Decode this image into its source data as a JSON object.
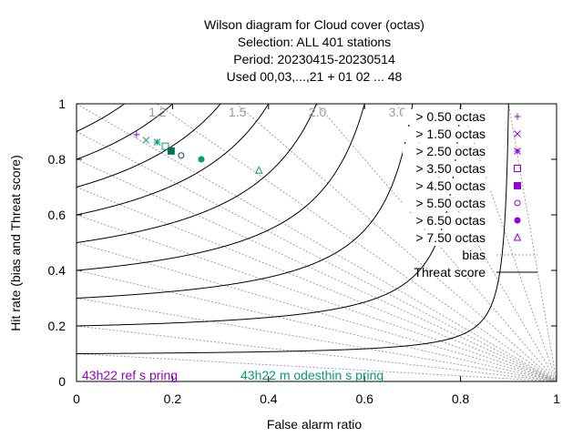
{
  "chart_data": {
    "type": "scatter",
    "title_lines": [
      "Wilson diagram  for Cloud cover (octas)",
      "Selection: ALL     401 stations",
      "Period: 20230415-20230514",
      "Used  00,03,...,21  + 01 02 ... 48"
    ],
    "xlabel": "False alarm ratio",
    "ylabel": "Hit rate (bias and Threat score)",
    "xlim": [
      0,
      1
    ],
    "ylim": [
      0,
      1
    ],
    "xticks": [
      "0",
      "0.2",
      "0.4",
      "0.6",
      "0.8",
      "1"
    ],
    "yticks": [
      "0",
      "0.2",
      "0.4",
      "0.6",
      "0.8",
      "1"
    ],
    "bias_labels": [
      "1.2",
      "1.5",
      "2.0",
      "3.0"
    ],
    "bias_values": [
      0.1,
      0.2,
      0.3,
      0.4,
      0.5,
      0.6,
      0.7,
      0.8,
      0.9,
      1.0,
      1.2,
      1.5,
      2.0,
      3.0,
      5.0,
      10.0
    ],
    "threat_values": [
      0.1,
      0.2,
      0.3,
      0.4,
      0.5,
      0.6,
      0.7,
      0.8,
      0.9
    ],
    "legend_placement": "top-right",
    "legend_lines": [
      {
        "name": "bias",
        "color": "#a0a0a0",
        "style": "dotted"
      },
      {
        "name": "Threat score",
        "color": "#000000",
        "style": "solid"
      }
    ],
    "series": [
      {
        "name": "> 0.50 octas",
        "marker": "plus",
        "color": "#9400d3",
        "x": 0.125,
        "y": 0.889
      },
      {
        "name": "> 1.50 octas",
        "marker": "cross",
        "color": "#009e73",
        "x": 0.145,
        "y": 0.869
      },
      {
        "name": "> 2.50 octas",
        "marker": "star",
        "color": "#009e73",
        "x": 0.168,
        "y": 0.862
      },
      {
        "name": "> 3.50 octas",
        "marker": "square-open",
        "color": "#009e73",
        "x": 0.185,
        "y": 0.847
      },
      {
        "name": "> 4.50 octas",
        "marker": "square-filled",
        "color": "#007050",
        "x": 0.197,
        "y": 0.83
      },
      {
        "name": "> 5.50 octas",
        "marker": "circle-open",
        "color": "#1c3d8f",
        "x": 0.218,
        "y": 0.814
      },
      {
        "name": "> 6.50 octas",
        "marker": "circle-filled",
        "color": "#009e73",
        "x": 0.26,
        "y": 0.8
      },
      {
        "name": "> 7.50 octas",
        "marker": "triangle-open",
        "color": "#009e73",
        "x": 0.38,
        "y": 0.76
      }
    ],
    "legend_marker_color": "#9400d3",
    "footnotes": [
      {
        "text": "43h22 ref s pring",
        "color": "#9400d3"
      },
      {
        "text": "43h22 m odesthin s pring",
        "color": "#009e73"
      }
    ]
  }
}
